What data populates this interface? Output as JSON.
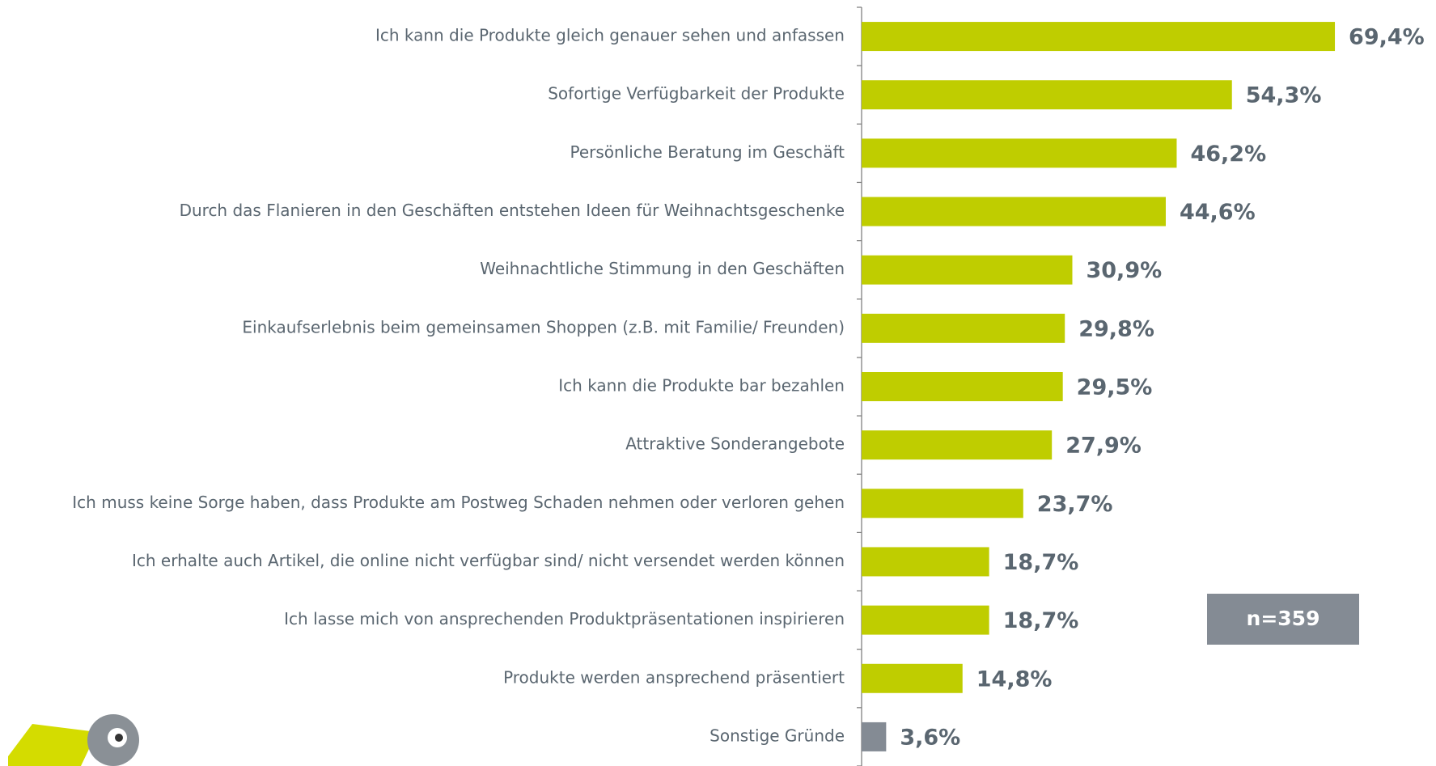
{
  "chart_data": {
    "type": "bar",
    "categories": [
      "Ich kann die Produkte gleich genauer sehen und anfassen",
      "Sofortige Verfügbarkeit der Produkte",
      "Persönliche Beratung im Geschäft",
      "Durch das Flanieren in den Geschäften entstehen Ideen für Weihnachtsgeschenke",
      "Weihnachtliche Stimmung in den Geschäften",
      "Einkaufserlebnis beim gemeinsamen Shoppen (z.B. mit Familie/ Freunden)",
      "Ich kann die Produkte bar bezahlen",
      "Attraktive Sonderangebote",
      "Ich muss keine Sorge haben, dass Produkte am Postweg Schaden nehmen oder verloren gehen",
      "Ich erhalte auch Artikel, die online nicht verfügbar sind/ nicht versendet werden können",
      "Ich lasse mich von ansprechenden Produktpräsentationen inspirieren",
      "Produkte werden ansprechend präsentiert",
      "Sonstige Gründe"
    ],
    "values": [
      69.4,
      54.3,
      46.2,
      44.6,
      30.9,
      29.8,
      29.5,
      27.9,
      23.7,
      18.7,
      18.7,
      14.8,
      3.6
    ],
    "value_labels": [
      "69,4%",
      "54,3%",
      "46,2%",
      "44,6%",
      "30,9%",
      "29,8%",
      "29,5%",
      "27,9%",
      "23,7%",
      "18,7%",
      "18,7%",
      "14,8%",
      "3,6%"
    ],
    "colors": [
      "#bfcd00",
      "#bfcd00",
      "#bfcd00",
      "#bfcd00",
      "#bfcd00",
      "#bfcd00",
      "#bfcd00",
      "#bfcd00",
      "#bfcd00",
      "#bfcd00",
      "#bfcd00",
      "#bfcd00",
      "#848b94"
    ],
    "annotation": "n=359"
  }
}
